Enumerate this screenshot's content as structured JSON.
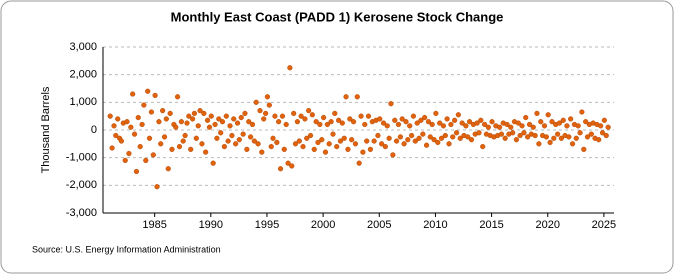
{
  "chart_data": {
    "type": "scatter",
    "title": "Monthly East Coast (PADD 1) Kerosene Stock Change",
    "y_label": "Thousand Barrels",
    "source": "Source: U.S. Energy Information Administration",
    "color": "#e0620d",
    "grid": true,
    "xlim": [
      1980.4,
      2025.9
    ],
    "xticks": [
      1985,
      1990,
      1995,
      2000,
      2005,
      2010,
      2015,
      2020,
      2025
    ],
    "ylim": [
      -3000,
      3000
    ],
    "yticks": [
      {
        "value": -3000,
        "label": "-3,000"
      },
      {
        "value": -2000,
        "label": "-2,000"
      },
      {
        "value": -1000,
        "label": "-1,000"
      },
      0,
      {
        "value": 1000,
        "label": "1,000"
      },
      {
        "value": 2000,
        "label": "2,000"
      },
      {
        "value": 3000,
        "label": "3,000"
      }
    ],
    "x": [
      1981.04,
      1981.21,
      1981.38,
      1981.54,
      1981.71,
      1981.88,
      1982.04,
      1982.21,
      1982.38,
      1982.54,
      1982.71,
      1982.88,
      1983.04,
      1983.21,
      1983.38,
      1983.54,
      1983.71,
      1983.88,
      1984.04,
      1984.21,
      1984.38,
      1984.54,
      1984.71,
      1984.88,
      1985.04,
      1985.21,
      1985.38,
      1985.54,
      1985.71,
      1985.88,
      1986.04,
      1986.21,
      1986.38,
      1986.54,
      1986.71,
      1986.88,
      1987.04,
      1987.21,
      1987.38,
      1987.54,
      1987.71,
      1987.88,
      1988.04,
      1988.21,
      1988.38,
      1988.54,
      1988.71,
      1988.88,
      1989.04,
      1989.21,
      1989.38,
      1989.54,
      1989.71,
      1989.88,
      1990.04,
      1990.21,
      1990.38,
      1990.54,
      1990.71,
      1990.88,
      1991.04,
      1991.21,
      1991.38,
      1991.54,
      1991.71,
      1991.88,
      1992.04,
      1992.21,
      1992.38,
      1992.54,
      1992.71,
      1992.88,
      1993.04,
      1993.21,
      1993.38,
      1993.54,
      1993.71,
      1993.88,
      1994.04,
      1994.21,
      1994.38,
      1994.54,
      1994.71,
      1994.88,
      1995.04,
      1995.21,
      1995.38,
      1995.54,
      1995.71,
      1995.88,
      1996.04,
      1996.21,
      1996.38,
      1996.54,
      1996.71,
      1996.88,
      1997.04,
      1997.21,
      1997.38,
      1997.54,
      1997.71,
      1997.88,
      1998.04,
      1998.21,
      1998.38,
      1998.54,
      1998.71,
      1998.88,
      1999.04,
      1999.21,
      1999.38,
      1999.54,
      1999.71,
      1999.88,
      2000.04,
      2000.21,
      2000.38,
      2000.54,
      2000.71,
      2000.88,
      2001.04,
      2001.21,
      2001.38,
      2001.54,
      2001.71,
      2001.88,
      2002.04,
      2002.21,
      2002.38,
      2002.54,
      2002.71,
      2002.88,
      2003.04,
      2003.21,
      2003.38,
      2003.54,
      2003.71,
      2003.88,
      2004.04,
      2004.21,
      2004.38,
      2004.54,
      2004.71,
      2004.88,
      2005.04,
      2005.21,
      2005.38,
      2005.54,
      2005.71,
      2005.88,
      2006.04,
      2006.21,
      2006.38,
      2006.54,
      2006.71,
      2006.88,
      2007.04,
      2007.21,
      2007.38,
      2007.54,
      2007.71,
      2007.88,
      2008.04,
      2008.21,
      2008.38,
      2008.54,
      2008.71,
      2008.88,
      2009.04,
      2009.21,
      2009.38,
      2009.54,
      2009.71,
      2009.88,
      2010.04,
      2010.21,
      2010.38,
      2010.54,
      2010.71,
      2010.88,
      2011.04,
      2011.21,
      2011.38,
      2011.54,
      2011.71,
      2011.88,
      2012.04,
      2012.21,
      2012.38,
      2012.54,
      2012.71,
      2012.88,
      2013.04,
      2013.21,
      2013.38,
      2013.54,
      2013.71,
      2013.88,
      2014.04,
      2014.21,
      2014.38,
      2014.54,
      2014.71,
      2014.88,
      2015.04,
      2015.21,
      2015.38,
      2015.54,
      2015.71,
      2015.88,
      2016.04,
      2016.21,
      2016.38,
      2016.54,
      2016.71,
      2016.88,
      2017.04,
      2017.21,
      2017.38,
      2017.54,
      2017.71,
      2017.88,
      2018.04,
      2018.21,
      2018.38,
      2018.54,
      2018.71,
      2018.88,
      2019.04,
      2019.21,
      2019.38,
      2019.54,
      2019.71,
      2019.88,
      2020.04,
      2020.21,
      2020.38,
      2020.54,
      2020.71,
      2020.88,
      2021.04,
      2021.21,
      2021.38,
      2021.54,
      2021.71,
      2021.88,
      2022.04,
      2022.21,
      2022.38,
      2022.54,
      2022.71,
      2022.88,
      2023.04,
      2023.21,
      2023.38,
      2023.54,
      2023.71,
      2023.88,
      2024.04,
      2024.21,
      2024.38,
      2024.54,
      2024.71,
      2024.88,
      2025.04,
      2025.21,
      2025.38
    ],
    "values": [
      500,
      -650,
      150,
      -200,
      400,
      -300,
      -400,
      250,
      -1100,
      300,
      -850,
      100,
      1300,
      -150,
      -1500,
      450,
      -600,
      200,
      900,
      -1100,
      1400,
      -300,
      650,
      -900,
      1250,
      -2050,
      300,
      -500,
      700,
      -250,
      400,
      -1400,
      600,
      -700,
      200,
      100,
      1200,
      -600,
      300,
      -400,
      -200,
      250,
      500,
      -700,
      400,
      600,
      -300,
      150,
      700,
      -500,
      600,
      -800,
      350,
      100,
      500,
      -1200,
      200,
      -300,
      400,
      -100,
      300,
      -600,
      500,
      -400,
      150,
      -200,
      400,
      -500,
      250,
      -350,
      450,
      -150,
      600,
      -700,
      300,
      -250,
      200,
      -400,
      1000,
      -500,
      700,
      -800,
      400,
      600,
      1200,
      900,
      -600,
      -300,
      500,
      -450,
      300,
      -1400,
      500,
      -700,
      200,
      -1200,
      2250,
      -1300,
      600,
      -500,
      300,
      -400,
      500,
      -600,
      400,
      -300,
      700,
      -200,
      550,
      -700,
      300,
      -450,
      200,
      -350,
      450,
      -800,
      200,
      -500,
      300,
      -150,
      600,
      -600,
      350,
      -400,
      250,
      -300,
      1200,
      -700,
      400,
      -350,
      300,
      -500,
      1200,
      -1200,
      500,
      -800,
      200,
      -400,
      500,
      -700,
      300,
      -400,
      350,
      -200,
      400,
      -500,
      250,
      -600,
      150,
      -300,
      950,
      -900,
      350,
      -400,
      200,
      -250,
      400,
      -500,
      300,
      -350,
      150,
      -200,
      500,
      -400,
      250,
      -300,
      350,
      -150,
      450,
      -550,
      300,
      -250,
      200,
      -350,
      600,
      -450,
      250,
      -300,
      150,
      -200,
      400,
      -500,
      200,
      -250,
      350,
      -100,
      550,
      -300,
      250,
      -200,
      150,
      -250,
      300,
      -350,
      200,
      -150,
      250,
      -100,
      350,
      -600,
      200,
      -150,
      100,
      -200,
      300,
      -250,
      150,
      -200,
      100,
      -150,
      250,
      -300,
      200,
      -150,
      100,
      -100,
      300,
      -350,
      250,
      -200,
      150,
      -100,
      450,
      -250,
      200,
      -150,
      100,
      -200,
      600,
      -500,
      300,
      -200,
      150,
      -250,
      550,
      -450,
      300,
      -300,
      200,
      -150,
      250,
      -300,
      350,
      -200,
      150,
      -250,
      400,
      -500,
      200,
      -300,
      150,
      -100,
      650,
      -700,
      300,
      -250,
      200,
      -150,
      250,
      -300,
      200,
      -350,
      150,
      -100,
      350,
      -200,
      100
    ]
  }
}
